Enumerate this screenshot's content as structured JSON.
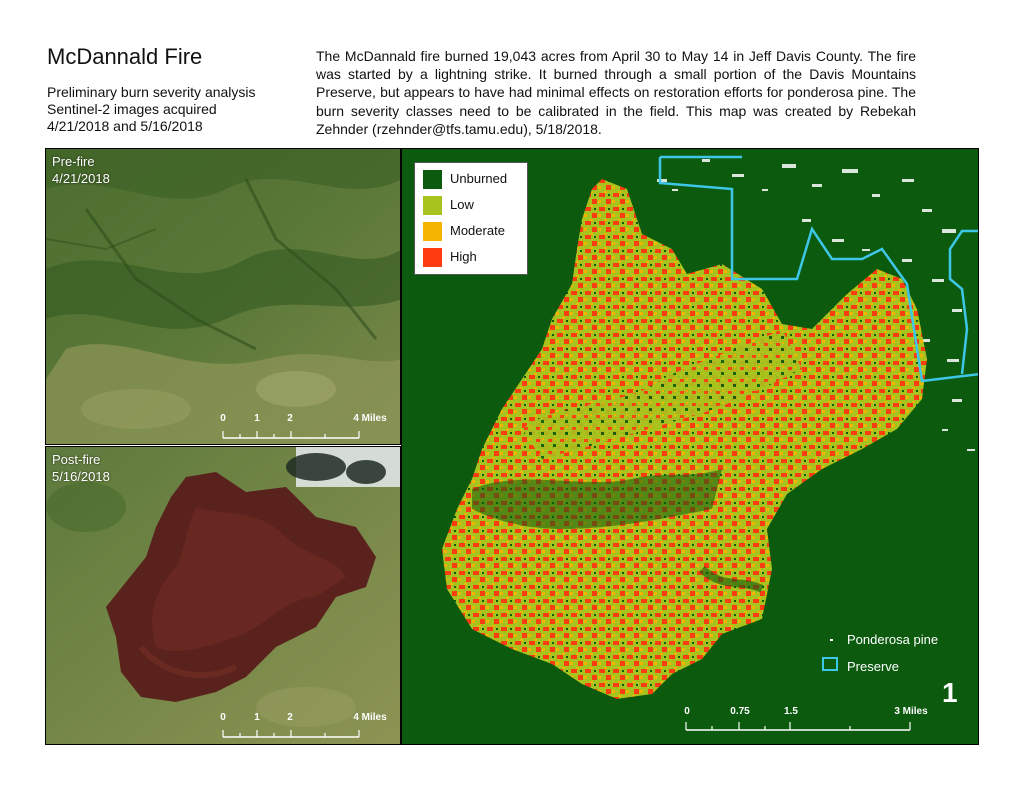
{
  "title": "McDannald Fire",
  "subtitle_lines": [
    "Preliminary burn severity analysis",
    "Sentinel-2 images acquired",
    "4/21/2018 and 5/16/2018"
  ],
  "description": "The McDannald fire burned 19,043 acres from April 30 to May 14 in Jeff Davis County.  The fire was started by a lightning strike.  It burned through a small portion of the Davis Mountains Preserve, but appears to have had minimal effects on restoration efforts for ponderosa pine.  The burn severity classes need to be calibrated in the field.  This map was created by Rebekah Zehnder (rzehnder@tfs.tamu.edu), 5/18/2018.",
  "pre_fire": {
    "label": "Pre-fire",
    "date": "4/21/2018",
    "scale_labels": [
      "0",
      "1",
      "2",
      "4 Miles"
    ]
  },
  "post_fire": {
    "label": "Post-fire",
    "date": "5/16/2018",
    "scale_labels": [
      "0",
      "1",
      "2",
      "4 Miles"
    ]
  },
  "severity_legend": [
    {
      "label": "Unburned",
      "color": "#0b5a0e"
    },
    {
      "label": "Low",
      "color": "#a8c21e"
    },
    {
      "label": "Moderate",
      "color": "#f5b400"
    },
    {
      "label": "High",
      "color": "#ff3b12"
    }
  ],
  "map_legend": {
    "ponderosa": "Ponderosa pine",
    "preserve": "Preserve",
    "preserve_color": "#3ec6e6"
  },
  "main_scale_labels": [
    "0",
    "0.75",
    "1.5",
    "3 Miles"
  ],
  "page_number": "1"
}
